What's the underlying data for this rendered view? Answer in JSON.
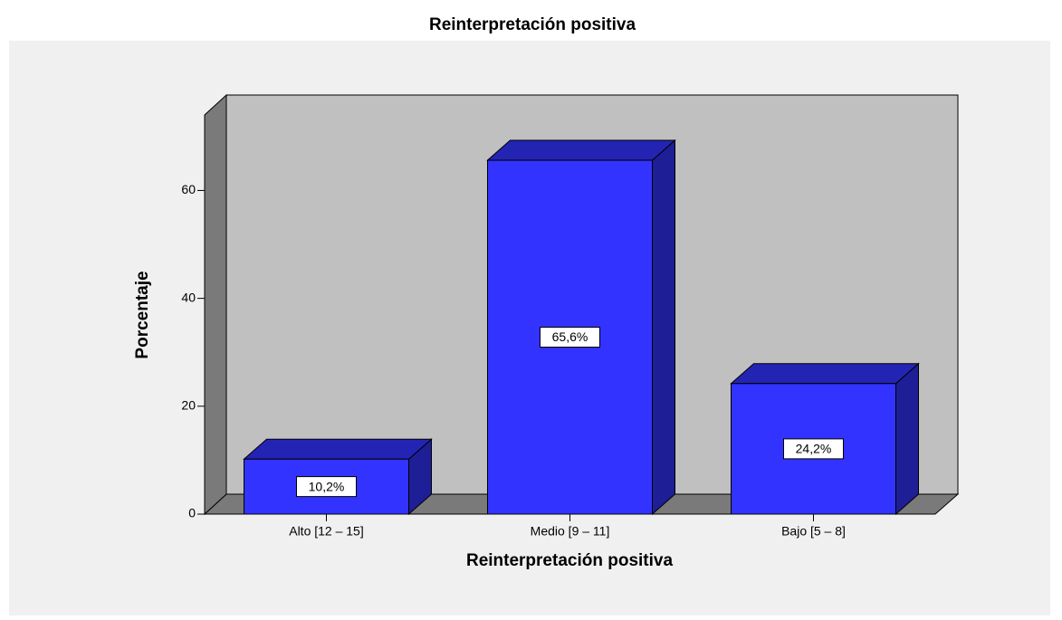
{
  "chart_data": {
    "type": "bar3d",
    "title": "Reinterpretación positiva",
    "x_label": "Reinterpretación positiva",
    "y_label": "Porcentaje",
    "categories": [
      "Alto [12 – 15]",
      "Medio [9 – 11]",
      "Bajo [5 – 8]"
    ],
    "values": [
      10.2,
      65.6,
      24.2
    ],
    "value_labels": [
      "10,2%",
      "65,6%",
      "24,2%"
    ],
    "color": "#3333ff",
    "ylim": [
      0,
      74
    ],
    "yticks": [
      0,
      20,
      40,
      60
    ]
  }
}
